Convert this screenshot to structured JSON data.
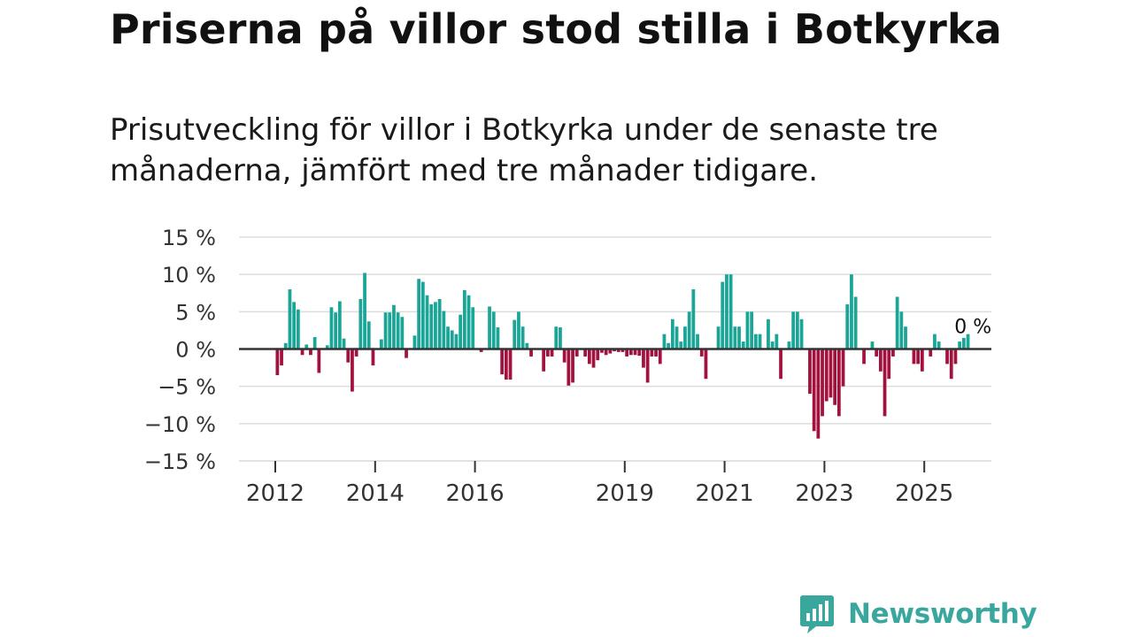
{
  "title": "Priserna på villor stod stilla i Botkyrka",
  "subtitle": "Prisutveckling för villor i Botkyrka under de senaste tre månaderna, jämfört med tre månader tidigare.",
  "brand": {
    "name": "Newsworthy"
  },
  "colors": {
    "positive": "#1aa596",
    "negative": "#a3123f",
    "grid": "#dddddd",
    "zero_line": "#333333"
  },
  "chart_data": {
    "type": "bar",
    "title": "Priserna på villor stod stilla i Botkyrka",
    "xlabel": "",
    "ylabel": "",
    "ylim": [
      -15,
      15
    ],
    "y_ticks": [
      15,
      10,
      5,
      0,
      -5,
      -10,
      -15
    ],
    "y_tick_labels": [
      "15 %",
      "10 %",
      "5 %",
      "0 %",
      "−5 %",
      "−10 %",
      "−15 %"
    ],
    "x_ticks": [
      2012,
      2014,
      2016,
      2019,
      2021,
      2023,
      2025
    ],
    "x_tick_labels": [
      "2012",
      "2014",
      "2016",
      "2019",
      "2021",
      "2023",
      "2025"
    ],
    "start": "2012-01",
    "end": "2025-06",
    "series": [
      {
        "name": "Prisutveckling",
        "unit": "%",
        "values": [
          -3.5,
          -2.2,
          0.8,
          8.0,
          6.3,
          5.3,
          -0.8,
          0.6,
          -0.8,
          1.6,
          -3.2,
          0,
          0.5,
          5.6,
          4.9,
          6.4,
          1.4,
          -1.8,
          -5.7,
          -1.0,
          6.7,
          10.2,
          3.7,
          -2.2,
          0,
          1.3,
          4.9,
          4.9,
          5.9,
          4.9,
          4.3,
          -1.2,
          0,
          1.8,
          9.4,
          9.0,
          7.2,
          6.0,
          6.3,
          6.7,
          5.1,
          3.0,
          2.5,
          2.0,
          4.6,
          7.9,
          7.2,
          5.6,
          0,
          -0.4,
          0,
          5.7,
          5.0,
          2.9,
          -3.4,
          -4.1,
          -4.1,
          3.9,
          5.0,
          3.0,
          0.8,
          -1.0,
          0,
          0,
          -3.0,
          -1.0,
          -1.0,
          3.0,
          2.9,
          -1.8,
          -4.9,
          -4.5,
          -1.0,
          0,
          -1.0,
          -2.0,
          -2.5,
          -1.5,
          -0.5,
          -0.8,
          -0.6,
          -0.3,
          -0.4,
          -0.4,
          -1.0,
          -0.8,
          -0.8,
          -0.9,
          -2.5,
          -4.5,
          -1.0,
          -1.0,
          -2.0,
          2.0,
          0.8,
          4.0,
          3.0,
          1.0,
          3.0,
          5.0,
          8.0,
          2.0,
          -1.0,
          -4.0,
          0,
          0,
          3.0,
          9.0,
          10.0,
          10.0,
          3.0,
          3.0,
          1.0,
          5.0,
          5.0,
          2.0,
          2.0,
          0,
          4.0,
          1.0,
          2.0,
          -4.0,
          0,
          1.0,
          5.0,
          5.0,
          4.0,
          0,
          -6.0,
          -11.0,
          -12.0,
          -9.0,
          -7.0,
          -6.5,
          -7.5,
          -9.0,
          -5.0,
          6.0,
          10.0,
          7.0,
          0,
          -2.0,
          0,
          1.0,
          -1.0,
          -3.0,
          -9.0,
          -4.0,
          -1.0,
          7.0,
          5.0,
          3.0,
          0,
          -2.0,
          -2.0,
          -3.0,
          0,
          -1.0,
          2.0,
          1.0,
          0,
          -2.0,
          -4.0,
          -2.0,
          1.0,
          1.5,
          2.0,
          0
        ]
      }
    ],
    "last_value_label": "0 %"
  }
}
